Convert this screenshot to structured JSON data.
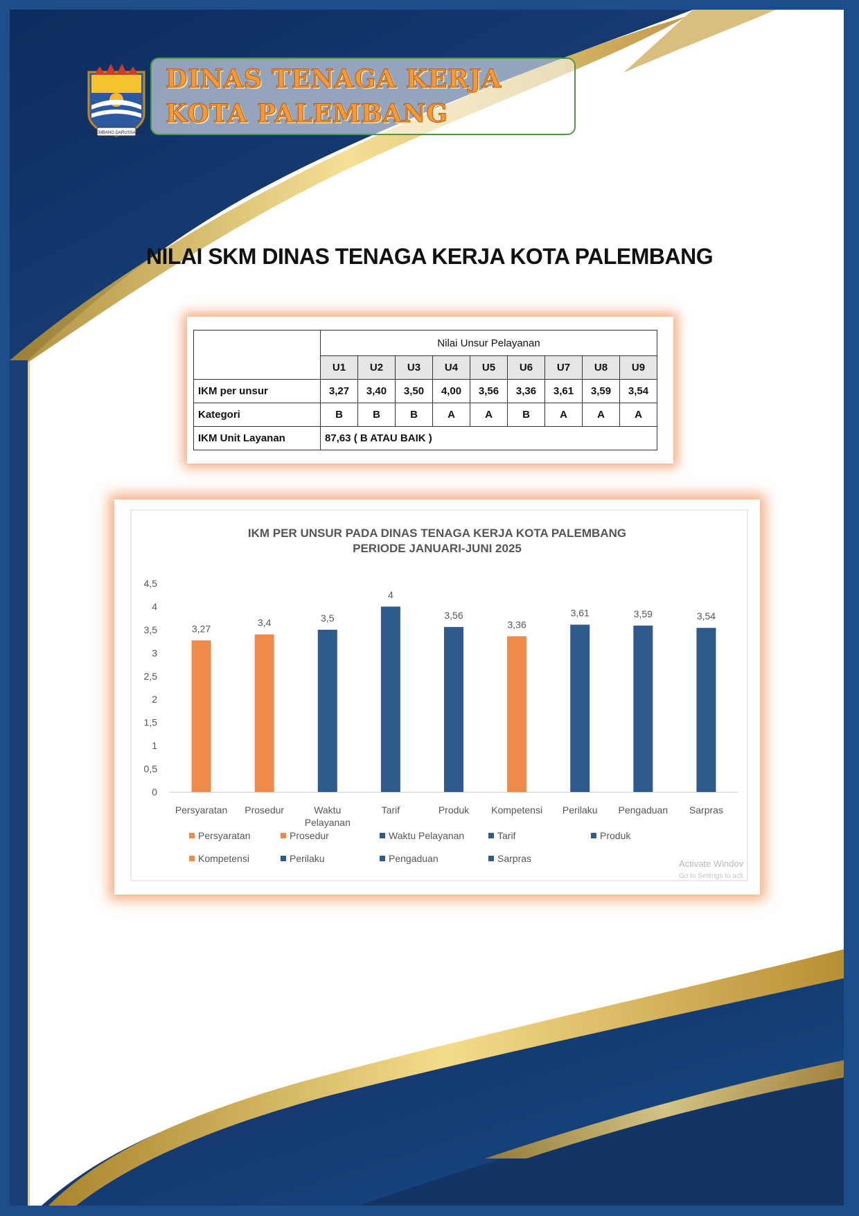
{
  "header": {
    "line1": "DINAS TENAGA KERJA",
    "line2": "KOTA PALEMBANG",
    "logo_caption": "PALEMBANG DARUSSALAM"
  },
  "page_title": "NILAI SKM DINAS TENAGA KERJA KOTA PALEMBANG",
  "table": {
    "group_header": "Nilai Unsur Pelayanan",
    "codes": [
      "U1",
      "U2",
      "U3",
      "U4",
      "U5",
      "U6",
      "U7",
      "U8",
      "U9"
    ],
    "rows": [
      {
        "label": "IKM per unsur",
        "values": [
          "3,27",
          "3,40",
          "3,50",
          "4,00",
          "3,56",
          "3,36",
          "3,61",
          "3,59",
          "3,54"
        ]
      },
      {
        "label": "Kategori",
        "values": [
          "B",
          "B",
          "B",
          "A",
          "A",
          "B",
          "A",
          "A",
          "A"
        ]
      }
    ],
    "unit_label": "IKM Unit Layanan",
    "unit_value": "87,63 ( B ATAU BAIK )"
  },
  "chart_data": {
    "type": "bar",
    "title": [
      "IKM PER UNSUR PADA DINAS TENAGA KERJA KOTA PALEMBANG",
      "PERIODE JANUARI-JUNI 2025"
    ],
    "categories": [
      "Persyaratan",
      "Prosedur",
      "Waktu Pelayanan",
      "Tarif",
      "Produk",
      "Kompetensi",
      "Perilaku",
      "Pengaduan",
      "Sarpras"
    ],
    "category_labels": [
      [
        "Persyaratan"
      ],
      [
        "Prosedur"
      ],
      [
        "Waktu",
        "Pelayanan"
      ],
      [
        "Tarif"
      ],
      [
        "Produk"
      ],
      [
        "Kompetensi"
      ],
      [
        "Perilaku"
      ],
      [
        "Pengaduan"
      ],
      [
        "Sarpras"
      ]
    ],
    "values": [
      3.27,
      3.4,
      3.5,
      4,
      3.56,
      3.36,
      3.61,
      3.59,
      3.54
    ],
    "data_labels": [
      "3,27",
      "3,4",
      "3,5",
      "4",
      "3,56",
      "3,36",
      "3,61",
      "3,59",
      "3,54"
    ],
    "colors": [
      "#f08a4b",
      "#f08a4b",
      "#2e5a8c",
      "#2e5a8c",
      "#2e5a8c",
      "#f08a4b",
      "#2e5a8c",
      "#2e5a8c",
      "#2e5a8c"
    ],
    "yticks": [
      "0",
      "0,5",
      "1",
      "1,5",
      "2",
      "2,5",
      "3",
      "3,5",
      "4",
      "4,5"
    ],
    "ylim": [
      0,
      4.5
    ],
    "grid": false,
    "legend": [
      "Persyaratan",
      "Prosedur",
      "Waktu Pelayanan",
      "Tarif",
      "Produk",
      "Kompetensi",
      "Perilaku",
      "Pengaduan",
      "Sarpras"
    ],
    "legend_position": "bottom"
  },
  "watermark": {
    "line1": "Activate Windov",
    "line2": "Go to Settings to acti"
  }
}
